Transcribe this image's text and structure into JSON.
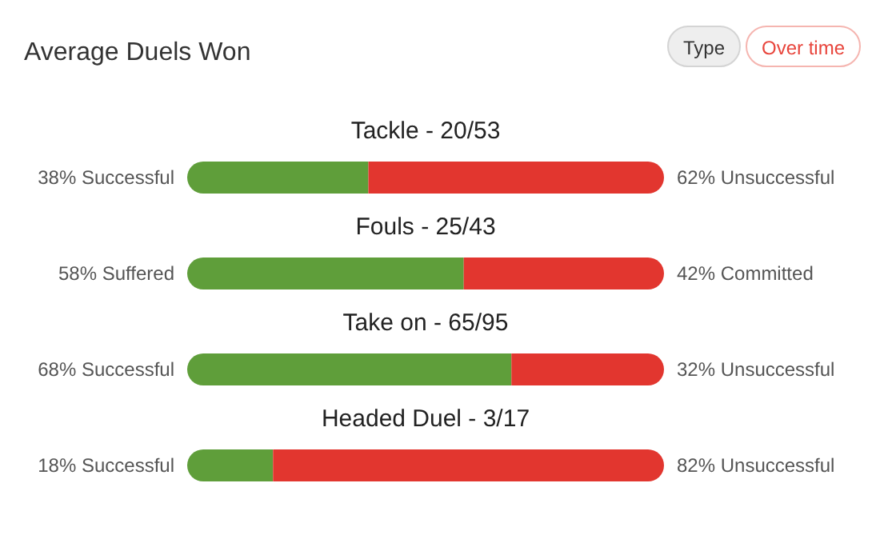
{
  "chart_data": {
    "type": "bar",
    "orientation": "horizontal",
    "stacked": true,
    "title": "Average Duels Won",
    "annotations": [
      "Type",
      "Over time"
    ],
    "categories": [
      "Tackle - 20/53",
      "Fouls - 25/43",
      "Take on - 65/95",
      "Headed Duel - 3/17"
    ],
    "series": [
      {
        "color": "#5f9e3a",
        "values": [
          38,
          58,
          68,
          18
        ],
        "value_labels": [
          "38% Successful",
          "58% Suffered",
          "68% Successful",
          "18% Successful"
        ]
      },
      {
        "color": "#e2362f",
        "values": [
          62,
          42,
          32,
          82
        ],
        "value_labels": [
          "62% Unsuccessful",
          "42% Committed",
          "32% Unsuccessful",
          "82% Unsuccessful"
        ]
      }
    ]
  }
}
